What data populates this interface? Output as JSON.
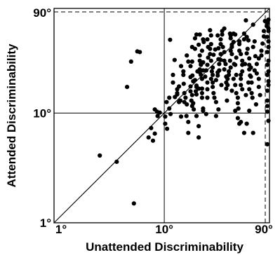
{
  "chart_data": {
    "type": "scatter",
    "title": "",
    "xlabel": "Unattended Discriminability",
    "ylabel": "Attended Discriminability",
    "x_scale": "log",
    "y_scale": "log",
    "xlim": [
      1,
      90
    ],
    "ylim": [
      1,
      90
    ],
    "x_ticks": [
      {
        "value": 1,
        "label": "1°"
      },
      {
        "value": 10,
        "label": "10°"
      },
      {
        "value": 90,
        "label": "90°"
      }
    ],
    "y_ticks": [
      {
        "value": 1,
        "label": "1°"
      },
      {
        "value": 10,
        "label": "10°"
      },
      {
        "value": 90,
        "label": "90°"
      }
    ],
    "reference_lines": [
      "identity",
      "x=10",
      "y=10",
      "x=90 dashed",
      "y=90 dashed"
    ],
    "grid": false,
    "point_color": "#000000",
    "points": [
      [
        2.6,
        4.1
      ],
      [
        3.7,
        3.6
      ],
      [
        5.3,
        1.5
      ],
      [
        4.6,
        17.3
      ],
      [
        5.0,
        29.5
      ],
      [
        5.7,
        36.5
      ],
      [
        6.0,
        36.0
      ],
      [
        7.2,
        6.0
      ],
      [
        7.6,
        7.3
      ],
      [
        7.9,
        5.6
      ],
      [
        8.2,
        6.5
      ],
      [
        8.2,
        10.8
      ],
      [
        8.7,
        9.4
      ],
      [
        9.1,
        10.1
      ],
      [
        8.6,
        10.3
      ],
      [
        10.2,
        9.3
      ],
      [
        10.2,
        8.0
      ],
      [
        10.6,
        7.2
      ],
      [
        10.5,
        12.6
      ],
      [
        11.1,
        13.8
      ],
      [
        11.1,
        11.0
      ],
      [
        11.4,
        9.8
      ],
      [
        12.0,
        22.3
      ],
      [
        11.3,
        46.6
      ],
      [
        12.4,
        30.5
      ],
      [
        12.0,
        19.0
      ],
      [
        13.1,
        15.2
      ],
      [
        13.1,
        16.5
      ],
      [
        13.6,
        17.5
      ],
      [
        13.1,
        14.8
      ],
      [
        13.6,
        12.6
      ],
      [
        14.2,
        9.3
      ],
      [
        14.2,
        26.8
      ],
      [
        14.9,
        22.3
      ],
      [
        14.9,
        24.0
      ],
      [
        15.2,
        15.2
      ],
      [
        15.6,
        13.8
      ],
      [
        15.2,
        12.6
      ],
      [
        15.9,
        9.4
      ],
      [
        16.5,
        8.3
      ],
      [
        16.5,
        6.6
      ],
      [
        16.5,
        29.5
      ],
      [
        16.0,
        33.5
      ],
      [
        17.3,
        17.5
      ],
      [
        17.3,
        15.8
      ],
      [
        17.9,
        14.6
      ],
      [
        17.6,
        13.0
      ],
      [
        17.9,
        11.6
      ],
      [
        18.3,
        12.3
      ],
      [
        17.3,
        21.3
      ],
      [
        18.3,
        19.5
      ],
      [
        19.6,
        17.8
      ],
      [
        19.6,
        17.3
      ],
      [
        20.5,
        16.7
      ],
      [
        19.3,
        15.8
      ],
      [
        19.6,
        14.8
      ],
      [
        19.6,
        9.4
      ],
      [
        20.5,
        7.6
      ],
      [
        20.5,
        6.0
      ],
      [
        17.9,
        29.5
      ],
      [
        17.3,
        26.8
      ],
      [
        17.9,
        40.0
      ],
      [
        19.0,
        38.5
      ],
      [
        19.0,
        48.0
      ],
      [
        19.6,
        52.0
      ],
      [
        21.0,
        52.0
      ],
      [
        22.5,
        47.0
      ],
      [
        22.8,
        44.5
      ],
      [
        20.5,
        42.0
      ],
      [
        21.0,
        33.5
      ],
      [
        22.0,
        37.0
      ],
      [
        21.0,
        30.0
      ],
      [
        21.5,
        28.0
      ],
      [
        21.0,
        25.0
      ],
      [
        21.0,
        23.5
      ],
      [
        22.5,
        24.5
      ],
      [
        22.5,
        29.0
      ],
      [
        21.5,
        27.5
      ],
      [
        21.5,
        22.3
      ],
      [
        22.0,
        20.5
      ],
      [
        22.0,
        16.7
      ],
      [
        22.0,
        15.2
      ],
      [
        22.0,
        13.8
      ],
      [
        22.5,
        11.0
      ],
      [
        22.5,
        10.5
      ],
      [
        24.0,
        9.8
      ],
      [
        24.6,
        13.8
      ],
      [
        24.6,
        16.5
      ],
      [
        24.6,
        19.0
      ],
      [
        23.5,
        21.5
      ],
      [
        24.0,
        24.5
      ],
      [
        24.6,
        27.5
      ],
      [
        25.0,
        32.0
      ],
      [
        26.0,
        34.5
      ],
      [
        26.0,
        38.5
      ],
      [
        25.0,
        40.0
      ],
      [
        26.6,
        42.5
      ],
      [
        24.6,
        47.0
      ],
      [
        26.6,
        51.0
      ],
      [
        26.0,
        57.0
      ],
      [
        26.6,
        30.0
      ],
      [
        27.5,
        26.0
      ],
      [
        27.5,
        22.3
      ],
      [
        26.6,
        20.5
      ],
      [
        27.5,
        19.0
      ],
      [
        27.5,
        17.3
      ],
      [
        28.0,
        15.2
      ],
      [
        28.5,
        13.8
      ],
      [
        29.5,
        12.6
      ],
      [
        31.0,
        10.8
      ],
      [
        29.5,
        9.4
      ],
      [
        29.5,
        20.0
      ],
      [
        30.5,
        22.0
      ],
      [
        30.5,
        23.5
      ],
      [
        31.5,
        24.5
      ],
      [
        31.5,
        28.0
      ],
      [
        32.5,
        30.5
      ],
      [
        32.5,
        34.5
      ],
      [
        31.0,
        39.0
      ],
      [
        32.5,
        42.5
      ],
      [
        32.5,
        47.0
      ],
      [
        30.5,
        51.0
      ],
      [
        33.5,
        52.0
      ],
      [
        33.5,
        56.0
      ],
      [
        35.0,
        59.0
      ],
      [
        35.0,
        36.0
      ],
      [
        35.0,
        30.0
      ],
      [
        35.0,
        25.0
      ],
      [
        36.5,
        21.5
      ],
      [
        36.5,
        19.0
      ],
      [
        36.5,
        16.7
      ],
      [
        37.5,
        18.0
      ],
      [
        37.5,
        20.5
      ],
      [
        38.5,
        22.3
      ],
      [
        38.5,
        24.0
      ],
      [
        39.5,
        30.0
      ],
      [
        41.0,
        34.5
      ],
      [
        40.0,
        37.0
      ],
      [
        41.0,
        40.0
      ],
      [
        41.0,
        42.0
      ],
      [
        42.5,
        44.5
      ],
      [
        40.0,
        48.0
      ],
      [
        40.0,
        51.0
      ],
      [
        39.5,
        53.0
      ],
      [
        42.5,
        53.0
      ],
      [
        44.0,
        52.0
      ],
      [
        44.0,
        27.5
      ],
      [
        45.0,
        22.3
      ],
      [
        42.5,
        20.5
      ],
      [
        44.0,
        18.0
      ],
      [
        45.0,
        15.2
      ],
      [
        46.5,
        13.8
      ],
      [
        46.5,
        12.3
      ],
      [
        47.0,
        11.0
      ],
      [
        44.0,
        10.5
      ],
      [
        46.5,
        9.0
      ],
      [
        48.0,
        8.0
      ],
      [
        49.5,
        8.3
      ],
      [
        53.0,
        6.6
      ],
      [
        56.0,
        8.0
      ],
      [
        55.0,
        14.6
      ],
      [
        51.0,
        16.5
      ],
      [
        49.5,
        18.0
      ],
      [
        49.5,
        20.5
      ],
      [
        49.5,
        22.3
      ],
      [
        51.0,
        24.0
      ],
      [
        51.0,
        27.5
      ],
      [
        51.0,
        30.0
      ],
      [
        49.5,
        34.5
      ],
      [
        48.0,
        37.0
      ],
      [
        48.0,
        42.5
      ],
      [
        48.0,
        45.0
      ],
      [
        53.0,
        47.0
      ],
      [
        56.0,
        49.5
      ],
      [
        56.0,
        35.0
      ],
      [
        59.0,
        31.5
      ],
      [
        59.0,
        27.5
      ],
      [
        59.0,
        25.0
      ],
      [
        61.0,
        21.5
      ],
      [
        62.0,
        19.0
      ],
      [
        59.0,
        16.5
      ],
      [
        62.0,
        15.2
      ],
      [
        63.0,
        13.8
      ],
      [
        68.0,
        12.0
      ],
      [
        59.0,
        10.5
      ],
      [
        53.0,
        53.0
      ],
      [
        55.0,
        70.0
      ],
      [
        57.0,
        38.5
      ],
      [
        64.0,
        64.0
      ],
      [
        64.0,
        40.0
      ],
      [
        66.0,
        45.0
      ],
      [
        66.0,
        24.5
      ],
      [
        69.0,
        23.0
      ],
      [
        69.0,
        28.0
      ],
      [
        72.0,
        31.5
      ],
      [
        72.0,
        20.5
      ],
      [
        72.0,
        17.3
      ],
      [
        74.0,
        14.6
      ],
      [
        76.0,
        33.5
      ],
      [
        76.0,
        37.0
      ],
      [
        78.0,
        43.0
      ],
      [
        80.0,
        50.0
      ],
      [
        80.0,
        56.0
      ],
      [
        85.0,
        62.0
      ],
      [
        82.0,
        69.0
      ],
      [
        86.0,
        27.5
      ],
      [
        86.0,
        22.3
      ],
      [
        88.0,
        18.0
      ],
      [
        86.0,
        16.0
      ],
      [
        86.0,
        13.0
      ],
      [
        86.0,
        10.3
      ],
      [
        88.0,
        8.5
      ],
      [
        86.0,
        5.2
      ],
      [
        88.0,
        24.0
      ],
      [
        88.0,
        30.0
      ],
      [
        86.0,
        36.0
      ],
      [
        88.0,
        40.0
      ],
      [
        88.0,
        45.0
      ],
      [
        86.0,
        49.5
      ],
      [
        88.0,
        56.0
      ],
      [
        88.0,
        59.0
      ],
      [
        86.0,
        66.0
      ],
      [
        88.0,
        71.0
      ],
      [
        88.0,
        19.5
      ],
      [
        86.0,
        11.6
      ],
      [
        64.0,
        6.6
      ],
      [
        58.0,
        19.0
      ],
      [
        60.0,
        22.0
      ],
      [
        58.0,
        46.0
      ],
      [
        54.0,
        28.0
      ],
      [
        61.0,
        26.0
      ],
      [
        67.0,
        33.0
      ],
      [
        36.0,
        28.0
      ],
      [
        40.0,
        26.0
      ],
      [
        27.0,
        24.0
      ],
      [
        18.0,
        22.0
      ],
      [
        15.0,
        18.5
      ],
      [
        12.5,
        14.0
      ],
      [
        14.0,
        13.0
      ],
      [
        16.0,
        12.0
      ],
      [
        18.5,
        10.8
      ],
      [
        19.0,
        20.0
      ],
      [
        20.0,
        24.0
      ],
      [
        28.0,
        34.0
      ],
      [
        29.0,
        38.0
      ],
      [
        34.0,
        40.0
      ],
      [
        33.0,
        18.0
      ],
      [
        37.0,
        13.0
      ],
      [
        41.0,
        16.0
      ],
      [
        43.0,
        28.0
      ],
      [
        45.0,
        32.0
      ],
      [
        31.0,
        31.0
      ]
    ]
  }
}
